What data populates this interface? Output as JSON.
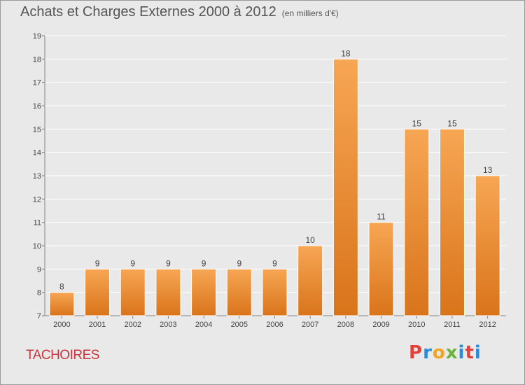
{
  "header": {
    "title": "Achats et Charges Externes 2000 à 2012",
    "unit": "(en milliers d'€)"
  },
  "footer": {
    "commune": "TACHOIRES",
    "logo_text": "Proxiti",
    "logo_colors": [
      "#e3423b",
      "#2c8ad6",
      "#f5a31a",
      "#6bb33e",
      "#2c8ad6",
      "#e3423b",
      "#2c8ad6"
    ]
  },
  "colors": {
    "bar_light": "#f7a654",
    "bar_dark": "#d9741a",
    "background": "#e9e9e9",
    "grid": "#ffffff",
    "axis_text": "#444444",
    "commune": "#c8353d"
  },
  "chart_data": {
    "type": "bar",
    "categories": [
      "2000",
      "2001",
      "2002",
      "2003",
      "2004",
      "2005",
      "2006",
      "2007",
      "2008",
      "2009",
      "2010",
      "2011",
      "2012"
    ],
    "values": [
      8,
      9,
      9,
      9,
      9,
      9,
      9,
      10,
      18,
      11,
      15,
      15,
      13
    ],
    "data_labels": [
      "8",
      "9",
      "9",
      "9",
      "9",
      "9",
      "9",
      "10",
      "18",
      "11",
      "15",
      "15",
      "13"
    ],
    "y_ticks": [
      7,
      8,
      9,
      10,
      11,
      12,
      13,
      14,
      15,
      16,
      17,
      18,
      19
    ],
    "ylim": [
      7,
      19
    ],
    "grid": true,
    "title": "Achats et Charges Externes 2000 à 2012",
    "xlabel": "",
    "ylabel": ""
  }
}
